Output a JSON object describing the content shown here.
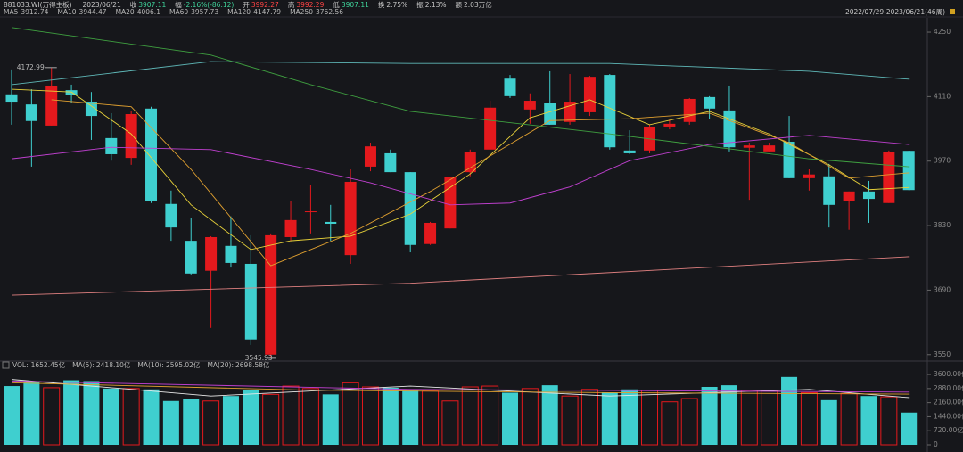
{
  "header": {
    "code": "881033.WI(万得主板)",
    "date": "2023/06/21",
    "close_label": "收",
    "change_label": "幅",
    "change": "-2.16%(-86.12)",
    "open_label": "开",
    "high_label": "高",
    "low_label": "低",
    "turnover_label": "换",
    "turnover": "2.75%",
    "amplitude_label": "振",
    "amplitude": "2.13%",
    "amount_label": "额",
    "amount": "2.03万亿",
    "range": "2022/07/29-2023/06/21(46周)"
  },
  "chart_data": [
    {
      "type": "candlestick",
      "up_color": "#e4191d",
      "down_color": "#3fcfcf",
      "open": [
        4115,
        4093,
        4047,
        4124,
        4099,
        4020,
        3977,
        4084,
        3877,
        3797,
        3732,
        3786,
        3747,
        3550,
        3805,
        3860,
        3838,
        3766,
        3958,
        3987,
        3946,
        3790,
        3824,
        3946,
        3995,
        4149,
        4082,
        4097,
        4055,
        4076,
        4157,
        3993,
        3993,
        4045,
        4055,
        4109,
        4080,
        3999,
        3991,
        4012,
        3933,
        3937,
        3883,
        3904,
        3879,
        3992.27
      ],
      "high": [
        4169,
        4126,
        4172.99,
        4136,
        4120,
        4074,
        4078,
        4088,
        3906,
        3846,
        3807,
        3850,
        3809,
        3813,
        3884,
        3919,
        3875,
        3952,
        4010,
        3995,
        3946,
        3838,
        3935,
        3995,
        4101,
        4157,
        4117,
        4165,
        4159,
        4155,
        4159,
        4037,
        4049,
        4060,
        4107,
        4111,
        4134,
        4010,
        4010,
        4068,
        3952,
        3964,
        3904,
        3927,
        3993,
        3992.29
      ],
      "low": [
        4049,
        3958,
        4047,
        4097,
        4016,
        3971,
        3962,
        3879,
        3797,
        3724,
        3608,
        3739,
        3571,
        3545.93,
        3797,
        3813,
        3797,
        3747,
        3948,
        3946,
        3772,
        3788,
        3824,
        3937,
        3995,
        4107,
        4051,
        4049,
        4049,
        4068,
        3995,
        3985,
        3987,
        4039,
        4049,
        4062,
        3991,
        3886,
        3991,
        3933,
        3906,
        3826,
        3821,
        3836,
        3879,
        3907.11
      ],
      "close": [
        4099,
        4057,
        4132,
        4113,
        4068,
        3985,
        4072,
        3883,
        3826,
        3726,
        3805,
        3749,
        3583,
        3809,
        3842,
        3861,
        3834,
        3925,
        4002,
        3946,
        3788,
        3836,
        3935,
        3989,
        4086,
        4111,
        4101,
        4049,
        4099,
        4153,
        4000,
        3987,
        4045,
        4051,
        4105,
        4084,
        4000,
        4004,
        4004,
        3933,
        3941,
        3875,
        3904,
        3888,
        3989,
        3907.11
      ],
      "series": [
        {
          "name": "MA5",
          "color": "#e8d23a",
          "x": [
            0,
            3,
            6,
            9,
            12,
            14,
            17,
            20,
            23,
            26,
            29,
            32,
            35,
            38,
            41,
            43,
            45
          ],
          "values": [
            4126,
            4120,
            4029,
            3875,
            3778,
            3797,
            3807,
            3855,
            3942,
            4064,
            4103,
            4049,
            4078,
            4029,
            3962,
            3908,
            3912.74
          ]
        },
        {
          "name": "MA10",
          "color": "#e0a030",
          "x": [
            2,
            6,
            9,
            13,
            17,
            21,
            24,
            27,
            31,
            35,
            39,
            42,
            45
          ],
          "values": [
            4103,
            4088,
            3952,
            3743,
            3813,
            3904,
            3981,
            4058,
            4062,
            4074,
            4010,
            3933,
            3944.47
          ]
        },
        {
          "name": "MA20",
          "color": "#c040d0",
          "x": [
            0,
            5,
            10,
            15,
            18,
            22,
            25,
            28,
            31,
            35,
            40,
            45
          ],
          "values": [
            3975,
            4000,
            3995,
            3952,
            3923,
            3875,
            3879,
            3914,
            3971,
            4006,
            4026,
            4006.1
          ]
        },
        {
          "name": "MA60",
          "color": "#3fa040",
          "x": [
            0,
            10,
            15,
            20,
            30,
            40,
            45
          ],
          "values": [
            4260,
            4200,
            4136,
            4078,
            4029,
            3975,
            3957.73
          ]
        },
        {
          "name": "MA120",
          "color": "#5fb8b8",
          "x": [
            0,
            10,
            20,
            30,
            40,
            45
          ],
          "values": [
            4136,
            4186,
            4182,
            4182,
            4165,
            4147.79
          ]
        },
        {
          "name": "MA250",
          "color": "#e08080",
          "x": [
            0,
            20,
            45
          ],
          "values": [
            3679,
            3705,
            3762.56
          ]
        }
      ],
      "ylim": [
        3536,
        4281
      ],
      "yticks": [
        3550,
        3690,
        3830,
        3970,
        4110,
        4250
      ]
    },
    {
      "type": "bar",
      "label": "VOL:",
      "value_label": "1652.45亿",
      "values": [
        3007,
        3219,
        2922,
        3303,
        3261,
        2880,
        2880,
        2837,
        2245,
        2329,
        2245,
        2499,
        2795,
        2583,
        3007,
        2880,
        2583,
        3176,
        2964,
        2922,
        2837,
        2753,
        2245,
        2964,
        3007,
        2668,
        2880,
        3049,
        2499,
        2837,
        2668,
        2837,
        2795,
        2202,
        2372,
        2964,
        3049,
        2795,
        2753,
        3473,
        2668,
        2287,
        2626,
        2499,
        2456,
        1652.45
      ],
      "series": [
        {
          "name": "MA(5):",
          "color": "#e8e8e8",
          "value_label": "2418.10亿",
          "x": [
            0,
            10,
            20,
            30,
            40,
            45
          ],
          "values": [
            3346,
            2499,
            3007,
            2499,
            2837,
            2418.1
          ]
        },
        {
          "name": "MA(10):",
          "color": "#e0a030",
          "value_label": "2595.02亿",
          "x": [
            0,
            15,
            30,
            45
          ],
          "values": [
            3176,
            2795,
            2668,
            2595.02
          ]
        },
        {
          "name": "MA(20):",
          "color": "#c040d0",
          "value_label": "2698.58亿",
          "x": [
            0,
            20,
            45
          ],
          "values": [
            3261,
            2837,
            2698.58
          ]
        }
      ],
      "ylim": [
        0,
        3830
      ],
      "yticks": [
        0,
        {
          "value": 720,
          "label": "720.00亿"
        },
        {
          "value": 1440,
          "label": "1440.00亿"
        },
        {
          "value": 2160,
          "label": "2160.00亿"
        },
        {
          "value": 2880,
          "label": "2880.00亿"
        },
        {
          "value": 3600,
          "label": "3600.00亿"
        }
      ]
    }
  ]
}
